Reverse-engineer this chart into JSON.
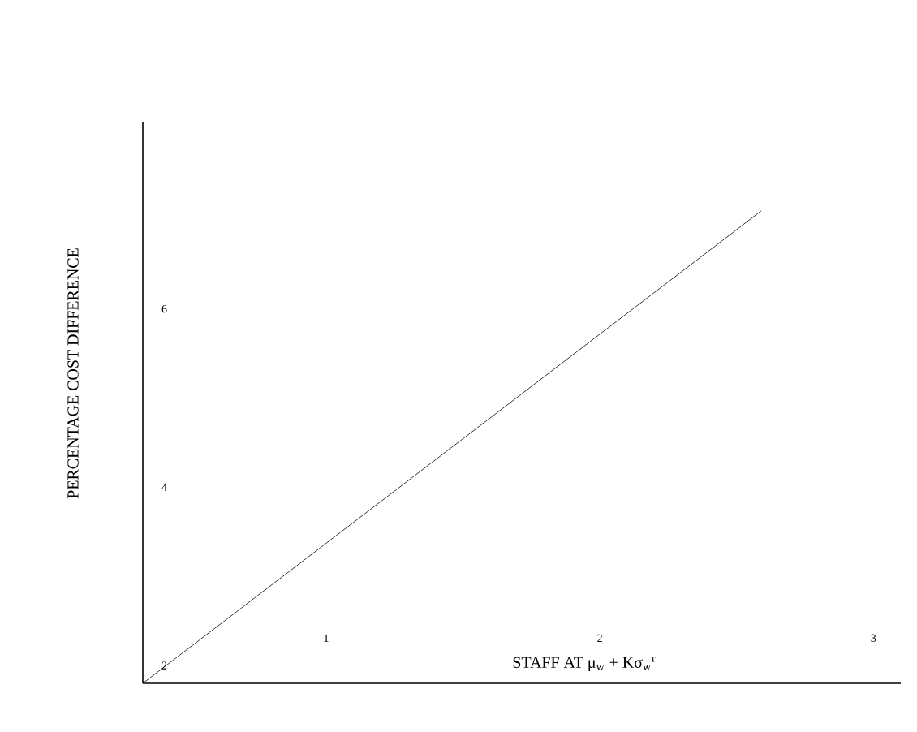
{
  "chart_data": {
    "type": "line",
    "xlabel": "STAFF AT μ$_{w}$ + Kσ$_{w}$$^{r}$",
    "ylabel": "PERCENTAGE COST DIFFERENCE",
    "x": [
      0.33,
      2.59
    ],
    "series": [
      {
        "color": "#000000",
        "values": [
          1.8,
          7.1
        ]
      }
    ],
    "xlim": [
      0.33,
      3.1
    ],
    "xticks": [
      1,
      2,
      3
    ],
    "ylim": [
      1.8,
      8.1
    ],
    "yticks": [
      2,
      4,
      6
    ],
    "grid": false,
    "marker": "none",
    "line_style": "solid"
  }
}
